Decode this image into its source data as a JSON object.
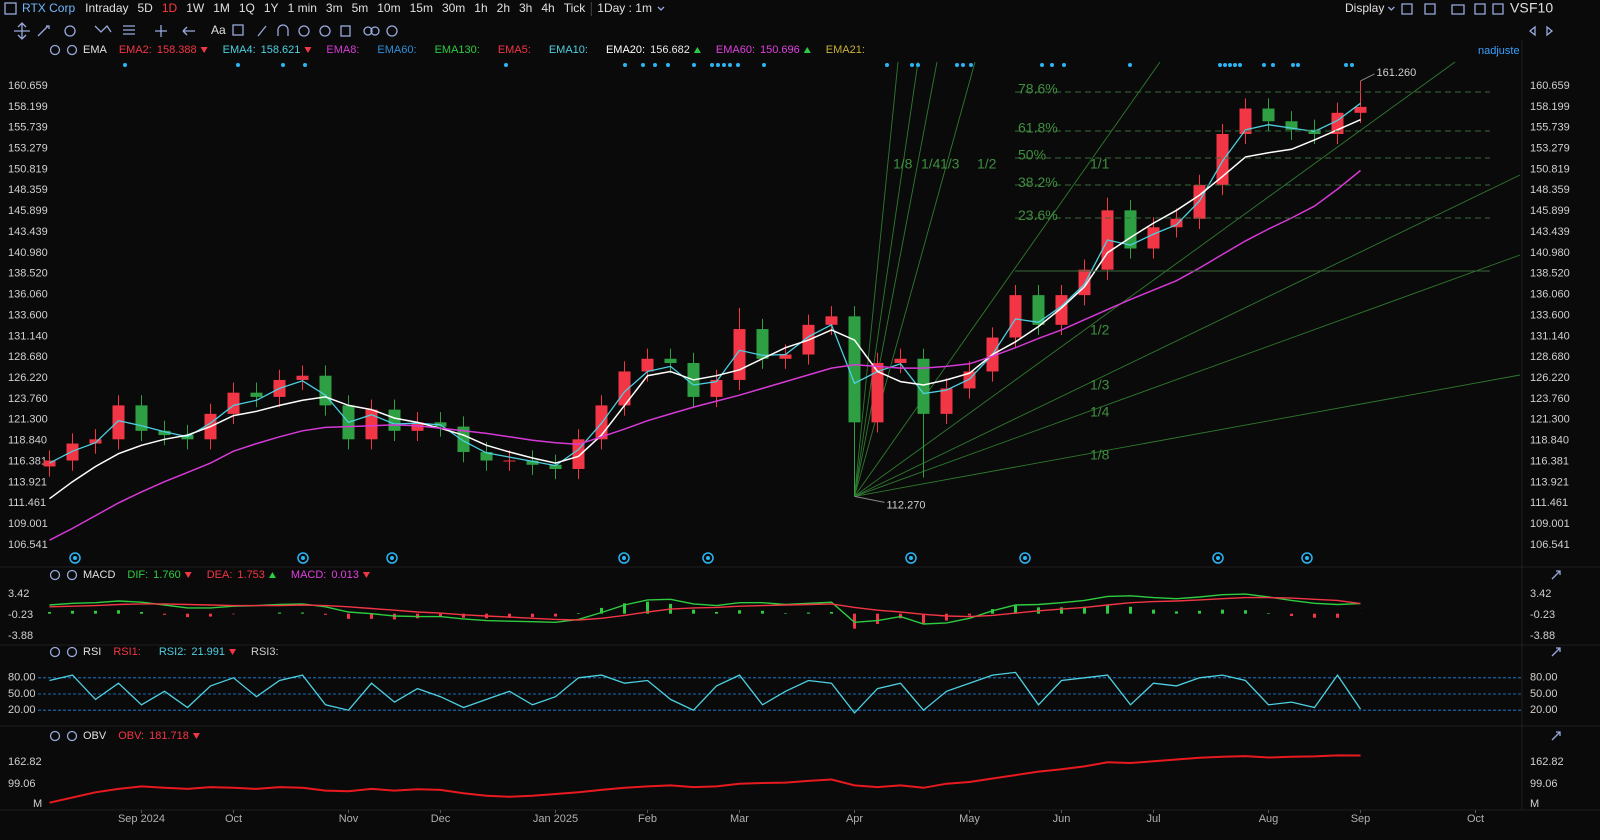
{
  "toolbar": {
    "symbol": "RTX Corp",
    "periods": [
      "Intraday",
      "5D",
      "1D",
      "1W",
      "1M",
      "1Q",
      "1Y",
      "1 min",
      "3m",
      "5m",
      "10m",
      "15m",
      "30m",
      "1h",
      "2h",
      "3h",
      "4h",
      "Tick"
    ],
    "active": "1D",
    "interval": "1Day : 1m",
    "display": "Display",
    "vs": "VS",
    "f10": "F10",
    "font_tool": "Aa"
  },
  "adjust": "nadjuste",
  "chart_data": [
    {
      "type": "candlestick",
      "indicator": "EMA",
      "legend": [
        {
          "label": "EMA2:",
          "color": "#f23645",
          "value": "158.388",
          "trend": "down"
        },
        {
          "label": "EMA4:",
          "color": "#4dd0e1",
          "value": "158.621",
          "trend": "down"
        },
        {
          "label": "EMA8:",
          "color": "#d63ad6"
        },
        {
          "label": "EMA60:",
          "color": "#2f8fd8"
        },
        {
          "label": "EMA130:",
          "color": "#2ecc40"
        },
        {
          "label": "EMA5:",
          "color": "#f23645"
        },
        {
          "label": "EMA10:",
          "color": "#4dd0e1"
        },
        {
          "label": "EMA20:",
          "color": "#ffffff",
          "value": "156.682",
          "trend": "up"
        },
        {
          "label": "EMA60:",
          "color": "#e040e0",
          "value": "150.696",
          "trend": "up"
        },
        {
          "label": "EMA21:",
          "color": "#c9b037"
        }
      ],
      "categories": [
        null,
        null,
        null,
        null,
        "Sep 2024",
        null,
        null,
        null,
        "Oct",
        null,
        null,
        null,
        null,
        "Nov",
        null,
        null,
        null,
        "Dec",
        null,
        null,
        null,
        null,
        "Jan 2025",
        null,
        null,
        null,
        "Feb",
        null,
        null,
        null,
        "Mar",
        null,
        null,
        null,
        null,
        "Apr",
        null,
        null,
        null,
        null,
        "May",
        null,
        null,
        null,
        "Jun",
        null,
        null,
        null,
        "Jul",
        null,
        null,
        null,
        null,
        "Aug",
        null,
        null,
        null,
        "Sep",
        null,
        null,
        null,
        null,
        "Oct",
        null
      ],
      "open": [
        115.8,
        116.5,
        118.5,
        119,
        123,
        120,
        119.5,
        119,
        122,
        124.5,
        124,
        126,
        126.5,
        123,
        119,
        122.5,
        120,
        121,
        120.5,
        117.5,
        116.5,
        116.5,
        116,
        115.5,
        119,
        123,
        127,
        128.5,
        128,
        124,
        126,
        132,
        128.5,
        129,
        132.5,
        133.5,
        121,
        128,
        128.5,
        122,
        125,
        127,
        131,
        136,
        132.5,
        136,
        139,
        146,
        141.5,
        144,
        145,
        149,
        155,
        158,
        156.5,
        155.5,
        155,
        157.5,
        null,
        null,
        null,
        null,
        null,
        null
      ],
      "high": [
        117.7,
        119.7,
        120.2,
        124.2,
        124.2,
        121.2,
        120.7,
        123.2,
        125.7,
        125.7,
        127.2,
        127.7,
        127.7,
        124.2,
        123.7,
        123.7,
        122.2,
        122.2,
        121.7,
        118.7,
        117.7,
        117.7,
        117.2,
        120.2,
        124.2,
        128.2,
        129.7,
        129.7,
        129.2,
        127.2,
        134.5,
        133.2,
        130.2,
        133.7,
        134.7,
        134.7,
        129.2,
        129.7,
        129.7,
        126.2,
        128.2,
        132.2,
        137.2,
        137.2,
        137.2,
        140.2,
        147.5,
        147.2,
        145.2,
        146.2,
        150.2,
        156.2,
        159.2,
        159.2,
        157.7,
        156.7,
        158.7,
        161.26,
        null,
        null,
        null,
        null,
        null,
        null
      ],
      "low": [
        114.6,
        115.3,
        117.3,
        117.8,
        118.8,
        118.3,
        117.8,
        117.8,
        120.8,
        122.8,
        122.8,
        124.8,
        121.8,
        117.8,
        117.8,
        118.8,
        118.8,
        119.3,
        116.3,
        115.3,
        115.3,
        114.8,
        114.3,
        114.3,
        117.8,
        121.8,
        125.8,
        126.8,
        122.8,
        122.8,
        124.8,
        127.3,
        127.3,
        127.8,
        131.3,
        112.27,
        119.8,
        126.8,
        114.5,
        120.8,
        123.8,
        125.8,
        129.8,
        131.3,
        131.3,
        134.8,
        137.8,
        140.3,
        140.3,
        142.8,
        143.8,
        147.8,
        153.8,
        155.3,
        154.3,
        153.8,
        153.8,
        156.3,
        null,
        null,
        null,
        null,
        null,
        null
      ],
      "close": [
        116.5,
        118.5,
        119,
        123,
        120,
        119.5,
        119,
        122,
        124.5,
        124,
        126,
        126.5,
        123,
        119,
        122.5,
        120,
        121,
        120.5,
        117.5,
        116.5,
        116.5,
        116,
        115.5,
        119,
        123,
        127,
        128.5,
        128,
        124,
        126,
        132,
        128.5,
        129,
        132.5,
        133.5,
        121,
        128,
        128.5,
        122,
        125,
        127,
        131,
        136,
        132.5,
        136,
        139,
        146,
        141.5,
        144,
        145,
        149,
        155,
        158,
        156.5,
        155.5,
        155,
        157.5,
        158.2,
        null,
        null,
        null,
        null,
        null,
        null
      ],
      "up_color": "#f23645",
      "down_color": "#2ea043",
      "series": [
        {
          "color": "#4dd0e1",
          "values": [
            116.2,
            117.6,
            118.6,
            121.2,
            120.6,
            119.9,
            119.3,
            120.9,
            123,
            123.6,
            125,
            125.9,
            124.2,
            121,
            121.9,
            120.8,
            120.9,
            120.7,
            118.8,
            117.4,
            116.9,
            116.4,
            115.9,
            117.8,
            120.9,
            124.6,
            127,
            127.6,
            125.4,
            125.8,
            129.5,
            128.9,
            129,
            131.1,
            132.5,
            125.6,
            127,
            127.9,
            124.4,
            124.8,
            126.1,
            129,
            133.2,
            132.8,
            134.7,
            137.3,
            142.5,
            141.9,
            143.2,
            144.3,
            147.1,
            151.8,
            155.5,
            156.1,
            155.7,
            155.3,
            156.6,
            158.621,
            null,
            null,
            null,
            null,
            null,
            null
          ]
        },
        {
          "color": "#ffffff",
          "values": [
            112,
            114,
            115.8,
            117.3,
            118.3,
            119,
            119.5,
            120.5,
            121.8,
            122.3,
            123,
            123.6,
            124,
            123,
            122.5,
            121.5,
            121,
            120.3,
            119.5,
            118.3,
            117.5,
            116.8,
            116.2,
            117,
            119.5,
            123,
            126.5,
            127,
            126,
            126.5,
            127.2,
            128.5,
            129.8,
            130.7,
            131.9,
            130.7,
            127,
            125.8,
            125.4,
            126,
            126.8,
            129,
            130.5,
            132.3,
            134.5,
            137,
            141,
            142.8,
            144.5,
            146,
            147.8,
            150,
            152.3,
            152.8,
            153.2,
            154.3,
            155.5,
            156.682,
            null,
            null,
            null,
            null,
            null,
            null
          ]
        },
        {
          "color": "#d63ad6",
          "values": [
            107.1,
            108.5,
            110,
            111.5,
            112.8,
            114,
            115.1,
            116.2,
            117.6,
            118.5,
            119.3,
            120,
            120.4,
            120.5,
            120.6,
            120.7,
            120.6,
            120.3,
            120,
            119.7,
            119.3,
            118.9,
            118.6,
            118.4,
            119.3,
            120.2,
            121.2,
            122,
            122.8,
            123.5,
            124.2,
            125,
            125.8,
            126.6,
            127.4,
            127.8,
            127.6,
            127.4,
            127.4,
            127.6,
            127.9,
            128.8,
            129.8,
            130.9,
            131.9,
            133.1,
            134.3,
            135.5,
            136.6,
            137.7,
            139.2,
            140.8,
            142.4,
            143.8,
            145.1,
            146.5,
            148.5,
            150.696,
            null,
            null,
            null,
            null,
            null,
            null
          ]
        }
      ],
      "high_label": {
        "value": 161.26,
        "label": "161.260"
      },
      "low_label": {
        "value": 112.27,
        "label": "112.270"
      },
      "fib": {
        "color": "#3f8f3f",
        "levels": [
          {
            "label": "78.6%",
            "value": 159.95
          },
          {
            "label": "61.8%",
            "value": 155.35
          },
          {
            "label": "50%",
            "value": 152.17
          },
          {
            "label": "38.2%",
            "value": 148.98
          },
          {
            "label": "23.6%",
            "value": 145.09
          }
        ],
        "base": 138.84
      },
      "gann_labels": [
        "1/8",
        "1/4",
        "1/3",
        "1/2",
        "1/1",
        "1/2",
        "1/3",
        "1/4",
        "1/8"
      ],
      "ylim": [
        104.18,
        163.49
      ],
      "yticks": [
        106.541,
        109.001,
        111.461,
        113.921,
        116.381,
        {
          "value": 118.84,
          "label": "118.840"
        },
        {
          "value": 121.3,
          "label": "121.300"
        },
        {
          "value": 123.76,
          "label": "123.760"
        },
        {
          "value": 126.22,
          "label": "126.220"
        },
        {
          "value": 128.68,
          "label": "128.680"
        },
        {
          "value": 131.14,
          "label": "131.140"
        },
        {
          "value": 133.6,
          "label": "133.600"
        },
        {
          "value": 136.06,
          "label": "136.060"
        },
        {
          "value": 138.52,
          "label": "138.520"
        },
        {
          "value": 140.98,
          "label": "140.980"
        },
        143.439,
        145.899,
        148.359,
        150.819,
        153.279,
        155.739,
        158.199,
        160.659
      ],
      "grid": false
    },
    {
      "type": "macd",
      "indicator": "MACD",
      "legend": [
        {
          "label": "DIF:",
          "color": "#2ecc40",
          "value": "1.760",
          "trend": "down"
        },
        {
          "label": "DEA:",
          "color": "#f23645",
          "value": "1.753",
          "trend": "up"
        },
        {
          "label": "MACD:",
          "color": "#e040e0",
          "value": "0.013",
          "trend": "down"
        }
      ],
      "series": [
        {
          "color": "#2ecc40",
          "values": [
            1.5,
            1.8,
            1.9,
            2.2,
            2.0,
            1.5,
            1.0,
            1.0,
            1.3,
            1.4,
            1.6,
            1.7,
            1.2,
            0.3,
            0,
            -0.4,
            -0.5,
            -0.5,
            -0.9,
            -1.2,
            -1.3,
            -1.4,
            -1.5,
            -1.0,
            0.2,
            1.5,
            2.4,
            2.5,
            1.7,
            1.4,
            1.9,
            1.9,
            1.6,
            1.8,
            2.0,
            -1.5,
            -1.2,
            -0.5,
            -1.8,
            -1.6,
            -0.8,
            0.5,
            1.5,
            1.6,
            1.9,
            2.3,
            3.0,
            3.1,
            2.8,
            2.6,
            2.9,
            3.3,
            3.4,
            2.9,
            2.3,
            1.8,
            1.6,
            1.76,
            null,
            null,
            null,
            null,
            null,
            null
          ]
        },
        {
          "color": "#f23645",
          "values": [
            1.2,
            1.3,
            1.4,
            1.6,
            1.7,
            1.7,
            1.6,
            1.5,
            1.4,
            1.4,
            1.4,
            1.5,
            1.4,
            1.2,
            0.9,
            0.6,
            0.3,
            0.1,
            -0.2,
            -0.4,
            -0.6,
            -0.8,
            -1.0,
            -1.1,
            -0.8,
            -0.3,
            0.3,
            0.8,
            1.0,
            1.1,
            1.3,
            1.4,
            1.5,
            1.6,
            1.7,
            1.1,
            0.6,
            0.3,
            -0.1,
            -0.4,
            -0.5,
            -0.3,
            0.1,
            0.5,
            0.8,
            1.1,
            1.5,
            1.9,
            2.1,
            2.2,
            2.4,
            2.6,
            2.8,
            2.8,
            2.7,
            2.5,
            2.3,
            1.753,
            null,
            null,
            null,
            null,
            null,
            null
          ]
        }
      ],
      "histogram": [
        0.3,
        0.5,
        0.5,
        0.6,
        0.3,
        -0.2,
        -0.6,
        -0.5,
        -0.1,
        0,
        0.2,
        0.2,
        -0.2,
        -0.9,
        -0.9,
        -1.0,
        -0.8,
        -0.6,
        -0.7,
        -0.8,
        -0.7,
        -0.6,
        -0.5,
        0.1,
        1.0,
        1.8,
        2.1,
        1.7,
        0.7,
        0.3,
        0.6,
        0.5,
        0.1,
        0.2,
        0.3,
        -2.6,
        -1.8,
        -0.8,
        -1.7,
        -1.2,
        -0.3,
        0.8,
        1.4,
        1.1,
        1.1,
        1.2,
        1.5,
        1.2,
        0.7,
        0.4,
        0.5,
        0.7,
        0.6,
        0.1,
        -0.4,
        -0.7,
        -0.7,
        0.013,
        null,
        null,
        null,
        null,
        null,
        null
      ],
      "up_color": "#2ecc40",
      "down_color": "#f23645",
      "ylim": [
        -5.44,
        5.33
      ],
      "yticks": [
        3.42,
        -0.23,
        -3.88
      ],
      "grid": false
    },
    {
      "type": "line",
      "indicator": "RSI",
      "legend": [
        {
          "label": "RSI1:",
          "color": "#f23645"
        },
        {
          "label": "RSI2:",
          "color": "#4dd0e1",
          "value": "21.991",
          "trend": "down"
        },
        {
          "label": "RSI3:",
          "color": "#d0d0d0"
        }
      ],
      "series": [
        {
          "color": "#4dd0e1",
          "values": [
            75,
            85,
            40,
            70,
            30,
            55,
            25,
            65,
            80,
            45,
            75,
            85,
            30,
            20,
            70,
            35,
            60,
            45,
            25,
            40,
            55,
            30,
            45,
            80,
            85,
            70,
            75,
            40,
            20,
            65,
            85,
            30,
            55,
            75,
            70,
            15,
            60,
            70,
            20,
            55,
            70,
            85,
            90,
            30,
            75,
            80,
            85,
            30,
            70,
            65,
            80,
            85,
            75,
            30,
            35,
            25,
            85,
            21.991,
            null,
            null,
            null,
            null,
            null,
            null
          ]
        }
      ],
      "ylim": [
        0,
        100
      ],
      "yticks": [
        {
          "value": 80,
          "label": "80.00"
        },
        {
          "value": 50,
          "label": "50.00"
        },
        {
          "value": 20,
          "label": "20.00"
        }
      ],
      "grid": true,
      "grid_color": "#1e88e5"
    },
    {
      "type": "line",
      "indicator": "OBV",
      "legend": [
        {
          "label": "OBV:",
          "color": "#f23645",
          "value": "181.718",
          "trend": "down"
        }
      ],
      "series": [
        {
          "color": "#e8191f",
          "values": [
            45,
            60,
            75,
            85,
            92,
            88,
            85,
            90,
            88,
            85,
            90,
            88,
            80,
            78,
            85,
            80,
            84,
            82,
            72,
            65,
            62,
            65,
            70,
            75,
            82,
            88,
            92,
            95,
            90,
            92,
            100,
            102,
            103,
            108,
            112,
            95,
            90,
            95,
            88,
            100,
            105,
            115,
            125,
            135,
            142,
            150,
            162,
            160,
            165,
            170,
            175,
            178,
            180,
            176,
            178,
            179,
            182,
            181.718,
            null,
            null,
            null,
            null,
            null,
            null
          ]
        }
      ],
      "unit": "M",
      "ylim": [
        23.7,
        212.1
      ],
      "yticks": [
        162.82,
        99.06
      ],
      "grid": false
    }
  ]
}
